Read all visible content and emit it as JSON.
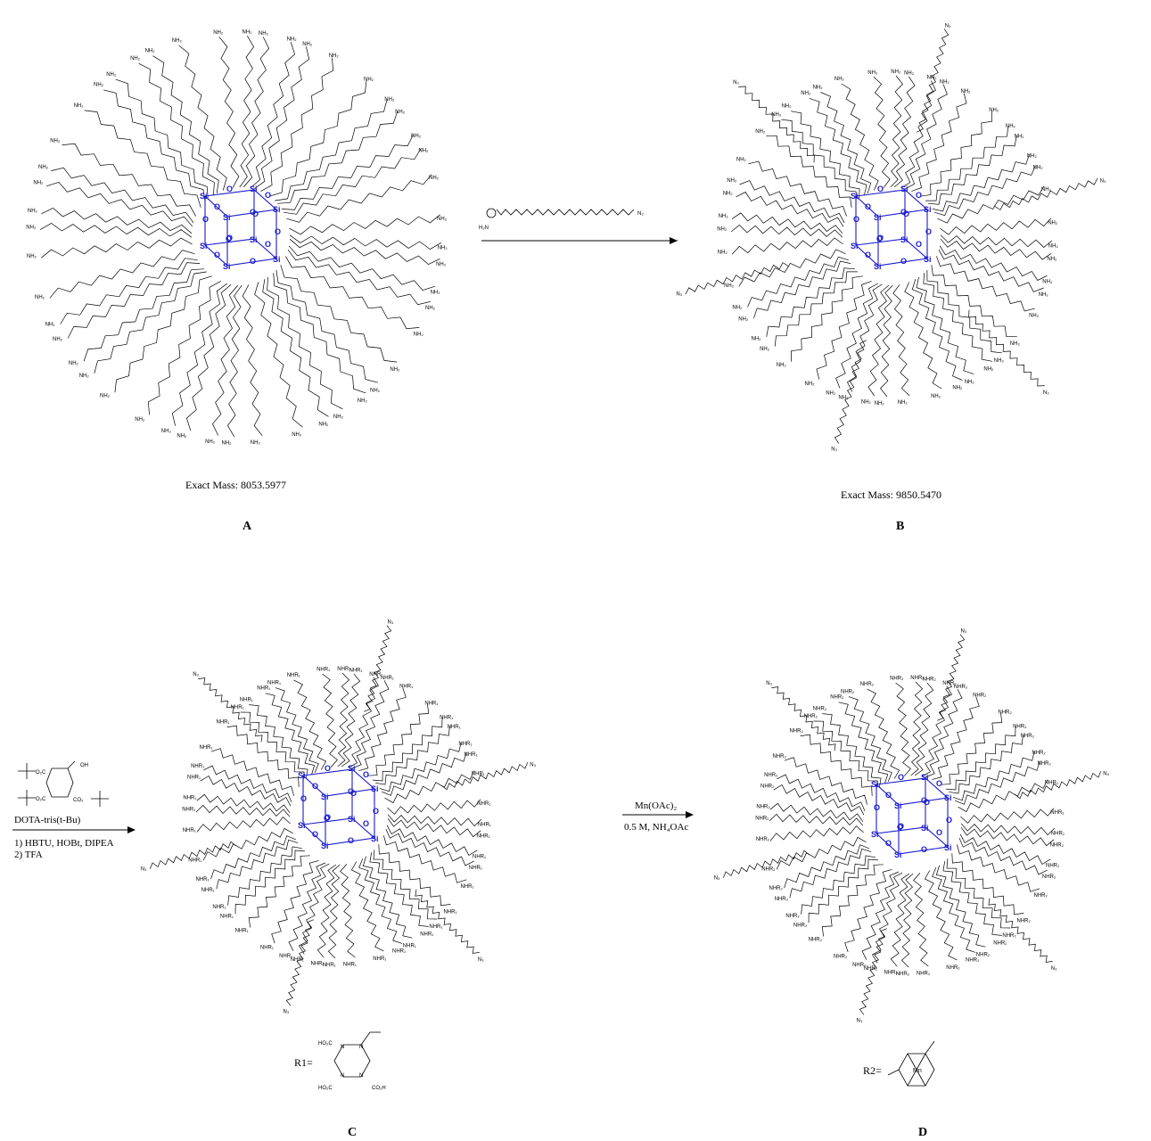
{
  "colors": {
    "core": "#1a1acc",
    "ink": "#000000"
  },
  "panels": {
    "A": {
      "letter": "A",
      "mass": "Exact Mass: 8053.5977",
      "end_group": "NH₂"
    },
    "B": {
      "letter": "B",
      "mass": "Exact Mass: 9850.5470",
      "end_group": "NH₂",
      "arm_end": "N₃"
    },
    "C": {
      "letter": "C",
      "end_group": "NHR₁",
      "arm_end": "N₃",
      "r_label": "R1="
    },
    "D": {
      "letter": "D",
      "end_group": "NHR₂",
      "arm_end": "N₃",
      "r_label": "R2=",
      "metal": "Mn"
    }
  },
  "core": {
    "atom_si": "Si",
    "atom_o": "O",
    "linker_nh": "NH",
    "linker_n": "N"
  },
  "arrow1": {
    "reagent_terminal_left": "H₂N",
    "reagent_terminal_right": "N₃"
  },
  "arrow2": {
    "reagent_name": "DOTA-tris(t-Bu)",
    "step1": "1) HBTU, HOBt, DIPEA",
    "step2": "2) TFA",
    "frag_ester": "O₂C",
    "frag_acid": "OH",
    "frag_co2": "CO₂"
  },
  "arrow3": {
    "line1": "Mn(OAc)₂",
    "line2": "0.5 M, NH₄OAc"
  },
  "r1": {
    "labels": [
      "HO₂C",
      "CO₂H",
      "HO₂C",
      "N",
      "N",
      "N",
      "N"
    ]
  }
}
